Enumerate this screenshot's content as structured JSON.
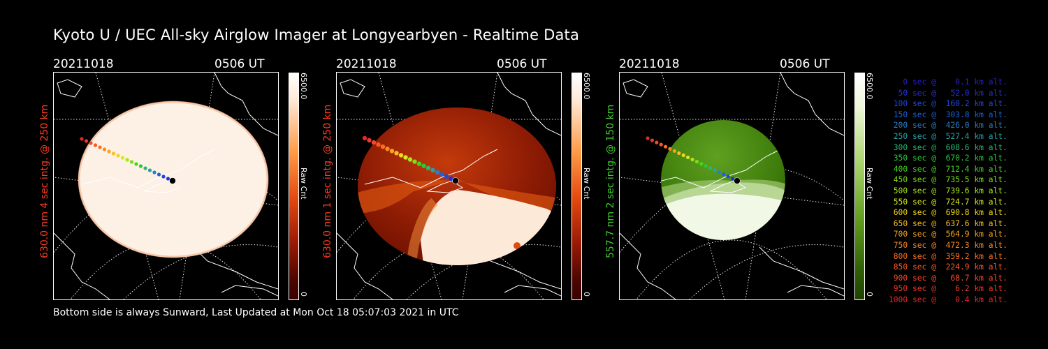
{
  "title": "Kyoto U / UEC All-sky Airglow Imager at Longyearbyen - Realtime Data",
  "footer": "Bottom side is always Sunward, Last Updated at Mon Oct 18 05:07:03 2021 in UTC",
  "panels": [
    {
      "date": "20211018",
      "time": "0506 UT",
      "vlabel": "630.0 nm 4 sec intg. @ 250 km",
      "vlabel_color": "#ff3b1f",
      "cbar_max": "6500.0",
      "cbar_min": "0",
      "cbar_unit": "Raw Cnt",
      "cbar_gradient": "linear-gradient(to bottom,#ffffff 0%,#ffe9d6 12%,#ff9a45 35%,#e44a10 55%,#9a1a05 75%,#4a0500 92%,#3a0000 100%)"
    },
    {
      "date": "20211018",
      "time": "0506 UT",
      "vlabel": "630.0 nm 1 sec intg. @ 250 km",
      "vlabel_color": "#ff3b1f",
      "cbar_max": "6500.0",
      "cbar_min": "0",
      "cbar_unit": "Raw Cnt",
      "cbar_gradient": "linear-gradient(to bottom,#ffffff 0%,#ffe9d6 12%,#ff9a45 35%,#e44a10 55%,#9a1a05 75%,#4a0500 92%,#3a0000 100%)"
    },
    {
      "date": "20211018",
      "time": "0506 UT",
      "vlabel": "557.7 nm 2 sec intg. @ 150 km",
      "vlabel_color": "#3ecf2a",
      "cbar_max": "6500.0",
      "cbar_min": "0",
      "cbar_unit": "Raw Cnt",
      "cbar_gradient": "linear-gradient(to bottom,#ffffff 0%,#eef7d8 15%,#a9d36a 40%,#5f9d1d 65%,#2f5d05 88%,#1f4200 100%)"
    }
  ],
  "legend": [
    {
      "text": "   0 sec @    0.1 km alt.",
      "color": "#2a1fd0"
    },
    {
      "text": "  50 sec @   52.0 km alt.",
      "color": "#2430d8"
    },
    {
      "text": " 100 sec @  160.2 km alt.",
      "color": "#2048e0"
    },
    {
      "text": " 150 sec @  303.8 km alt.",
      "color": "#1c62d8"
    },
    {
      "text": " 200 sec @  426.0 km alt.",
      "color": "#2a7ec8"
    },
    {
      "text": " 250 sec @  527.4 km alt.",
      "color": "#2aa0a8"
    },
    {
      "text": " 300 sec @  608.6 km alt.",
      "color": "#28b870"
    },
    {
      "text": " 350 sec @  670.2 km alt.",
      "color": "#2ac838"
    },
    {
      "text": " 400 sec @  712.4 km alt.",
      "color": "#40d81c"
    },
    {
      "text": " 450 sec @  735.5 km alt.",
      "color": "#78e018"
    },
    {
      "text": " 500 sec @  739.6 km alt.",
      "color": "#a8e81a"
    },
    {
      "text": " 550 sec @  724.7 km alt.",
      "color": "#d8e81c"
    },
    {
      "text": " 600 sec @  690.8 km alt.",
      "color": "#f0d81c"
    },
    {
      "text": " 650 sec @  637.6 km alt.",
      "color": "#f8c020"
    },
    {
      "text": " 700 sec @  564.9 km alt.",
      "color": "#f8a420"
    },
    {
      "text": " 750 sec @  472.3 km alt.",
      "color": "#f88a22"
    },
    {
      "text": " 800 sec @  359.2 km alt.",
      "color": "#f87024"
    },
    {
      "text": " 850 sec @  224.9 km alt.",
      "color": "#f85826"
    },
    {
      "text": " 900 sec @   68.7 km alt.",
      "color": "#f84828"
    },
    {
      "text": " 950 sec @    6.2 km alt.",
      "color": "#f03828"
    },
    {
      "text": "1000 sec @    0.4 km alt.",
      "color": "#e82828"
    }
  ]
}
